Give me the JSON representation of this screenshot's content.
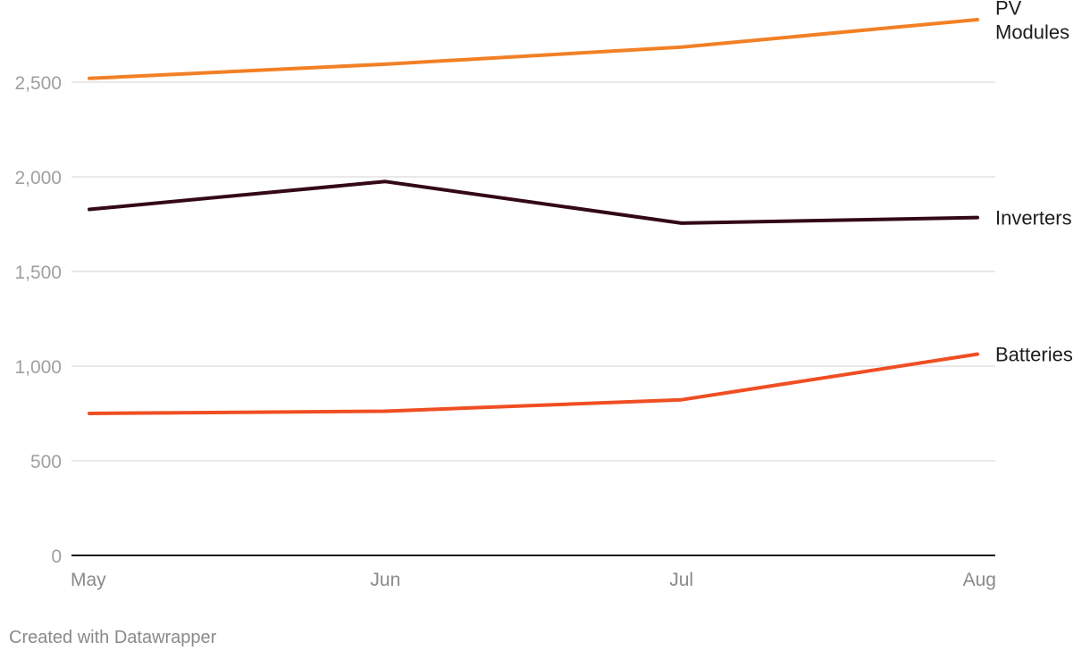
{
  "chart_data": {
    "type": "line",
    "categories": [
      "May",
      "Jun",
      "Jul",
      "Aug"
    ],
    "ylim": [
      0,
      2850
    ],
    "yticks": [
      0,
      500,
      1000,
      1500,
      2000,
      2500
    ],
    "ytick_labels": [
      "0",
      "500",
      "1,000",
      "1,500",
      "2,000",
      "2,500"
    ],
    "grid": true,
    "legend": "direct-labels-right",
    "series": [
      {
        "name": "PV Modules",
        "label_lines": [
          "PV",
          "Modules"
        ],
        "color": "#f28025",
        "values": [
          2520,
          2595,
          2685,
          2830
        ]
      },
      {
        "name": "Inverters",
        "label_lines": [
          "Inverters"
        ],
        "color": "#330818",
        "values": [
          1828,
          1975,
          1755,
          1785
        ]
      },
      {
        "name": "Batteries",
        "label_lines": [
          "Batteries"
        ],
        "color": "#f04e23",
        "values": [
          750,
          762,
          822,
          1063
        ]
      }
    ]
  },
  "footer": {
    "credit": "Created with Datawrapper"
  }
}
